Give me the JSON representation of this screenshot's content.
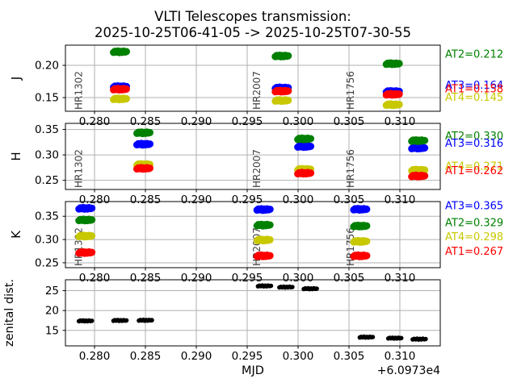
{
  "title": {
    "line1": "VLTI Telescopes transmission:",
    "line2": "2025-10-25T06-41-05 -> 2025-10-25T07-30-55"
  },
  "x_axis": {
    "label": "MJD",
    "offset": "+6.0973e4"
  },
  "chart_data": {
    "type": "scatter",
    "title": "VLTI Telescopes transmission: 2025-10-25T06-41-05 -> 2025-10-25T07-30-55",
    "xlabel": "MJD",
    "x_offset_text": "+6.0973e4",
    "xlim": [
      0.27714,
      0.31397
    ],
    "x_ticks": [
      0.28,
      0.285,
      0.29,
      0.295,
      0.3,
      0.305,
      0.31
    ],
    "x_tick_labels": [
      "0.280",
      "0.285",
      "0.290",
      "0.295",
      "0.300",
      "0.305",
      "0.310"
    ],
    "grid": true,
    "legend_position": "right",
    "colors": {
      "AT1": "#ff0000",
      "AT2": "#008000",
      "AT3": "#0000ff",
      "AT4": "#c8c800",
      "zenith": "#000000"
    },
    "subplots": [
      {
        "ylabel": "J",
        "ylim": [
          0.1288,
          0.2313
        ],
        "y_ticks": [
          0.15,
          0.2
        ],
        "y_tick_labels": [
          "0.15",
          "0.20"
        ],
        "star_labels": [
          {
            "text": "HR1302",
            "x": 0.2784
          },
          {
            "text": "HR2007",
            "x": 0.2959
          },
          {
            "text": "HR1756",
            "x": 0.3051
          }
        ],
        "series": [
          {
            "name": "AT3",
            "points": [
              [
                0.2825,
                0.167
              ],
              [
                0.2984,
                0.165
              ],
              [
                0.3093,
                0.1595
              ]
            ]
          },
          {
            "name": "AT2",
            "points": [
              [
                0.2825,
                0.221
              ],
              [
                0.2984,
                0.2145
              ],
              [
                0.3093,
                0.2025
              ]
            ]
          },
          {
            "name": "AT4",
            "points": [
              [
                0.2825,
                0.148
              ],
              [
                0.2984,
                0.1455
              ],
              [
                0.3093,
                0.139
              ]
            ]
          },
          {
            "name": "AT1",
            "points": [
              [
                0.2825,
                0.163
              ],
              [
                0.2984,
                0.16
              ],
              [
                0.3093,
                0.155
              ]
            ]
          }
        ],
        "legend": [
          {
            "text": "AT2=0.212",
            "name": "AT2",
            "value": 0.212
          },
          {
            "text": "AT3=0.164",
            "name": "AT3",
            "value": 0.164
          },
          {
            "text": "AT1=0.158",
            "name": "AT1",
            "value": 0.158
          },
          {
            "text": "AT4=0.145",
            "name": "AT4",
            "value": 0.145
          }
        ]
      },
      {
        "ylabel": "H",
        "ylim": [
          0.232,
          0.362
        ],
        "y_ticks": [
          0.25,
          0.3,
          0.35
        ],
        "y_tick_labels": [
          "0.25",
          "0.30",
          "0.35"
        ],
        "star_labels": [
          {
            "text": "HR1302",
            "x": 0.2784
          },
          {
            "text": "HR2007",
            "x": 0.2959
          },
          {
            "text": "HR1756",
            "x": 0.3051
          }
        ],
        "series": [
          {
            "name": "AT3",
            "points": [
              [
                0.2848,
                0.321
              ],
              [
                0.3006,
                0.3165
              ],
              [
                0.3118,
                0.3135
              ]
            ]
          },
          {
            "name": "AT2",
            "points": [
              [
                0.2848,
                0.3435
              ],
              [
                0.3006,
                0.3315
              ],
              [
                0.3118,
                0.328
              ]
            ]
          },
          {
            "name": "AT4",
            "points": [
              [
                0.2848,
                0.281
              ],
              [
                0.3006,
                0.2715
              ],
              [
                0.3118,
                0.27
              ]
            ]
          },
          {
            "name": "AT1",
            "points": [
              [
                0.2848,
                0.2735
              ],
              [
                0.3006,
                0.264
              ],
              [
                0.3118,
                0.2585
              ]
            ]
          }
        ],
        "legend": [
          {
            "text": "AT2=0.330",
            "name": "AT2",
            "value": 0.33
          },
          {
            "text": "AT3=0.316",
            "name": "AT3",
            "value": 0.316
          },
          {
            "text": "AT4=0.271",
            "name": "AT4",
            "value": 0.271
          },
          {
            "text": "AT1=0.262",
            "name": "AT1",
            "value": 0.262
          }
        ]
      },
      {
        "ylabel": "K",
        "ylim": [
          0.2395,
          0.3816
        ],
        "y_ticks": [
          0.25,
          0.3,
          0.35
        ],
        "y_tick_labels": [
          "0.25",
          "0.30",
          "0.35"
        ],
        "star_labels": [
          {
            "text": "HR1302",
            "x": 0.2784
          },
          {
            "text": "HR2007",
            "x": 0.2959
          },
          {
            "text": "HR1756",
            "x": 0.3051
          }
        ],
        "series": [
          {
            "name": "AT3",
            "points": [
              [
                0.2791,
                0.367
              ],
              [
                0.2966,
                0.3645
              ],
              [
                0.3061,
                0.365
              ]
            ]
          },
          {
            "name": "AT2",
            "points": [
              [
                0.2791,
                0.342
              ],
              [
                0.2966,
                0.331
              ],
              [
                0.3061,
                0.329
              ]
            ]
          },
          {
            "name": "AT4",
            "points": [
              [
                0.2791,
                0.3075
              ],
              [
                0.2966,
                0.299
              ],
              [
                0.3061,
                0.296
              ]
            ]
          },
          {
            "name": "AT1",
            "points": [
              [
                0.2791,
                0.272
              ],
              [
                0.2966,
                0.265
              ],
              [
                0.3061,
                0.265
              ]
            ]
          }
        ],
        "legend": [
          {
            "text": "AT3=0.365",
            "name": "AT3",
            "value": 0.365
          },
          {
            "text": "AT2=0.329",
            "name": "AT2",
            "value": 0.329
          },
          {
            "text": "AT4=0.298",
            "name": "AT4",
            "value": 0.298
          },
          {
            "text": "AT1=0.267",
            "name": "AT1",
            "value": 0.267
          }
        ]
      },
      {
        "ylabel": "zenital dist.",
        "ylim": [
          11.1,
          27.75
        ],
        "y_ticks": [
          15,
          20,
          25
        ],
        "y_tick_labels": [
          "15",
          "20",
          "25"
        ],
        "star_labels": [],
        "series": [
          {
            "name": "zenith",
            "points": [
              [
                0.2791,
                17.4
              ],
              [
                0.2825,
                17.5
              ],
              [
                0.285,
                17.55
              ],
              [
                0.2967,
                26.2
              ],
              [
                0.2988,
                25.9
              ],
              [
                0.3012,
                25.5
              ],
              [
                0.3067,
                13.3
              ],
              [
                0.3095,
                13.05
              ],
              [
                0.3119,
                12.8
              ]
            ]
          }
        ],
        "legend": []
      }
    ]
  }
}
